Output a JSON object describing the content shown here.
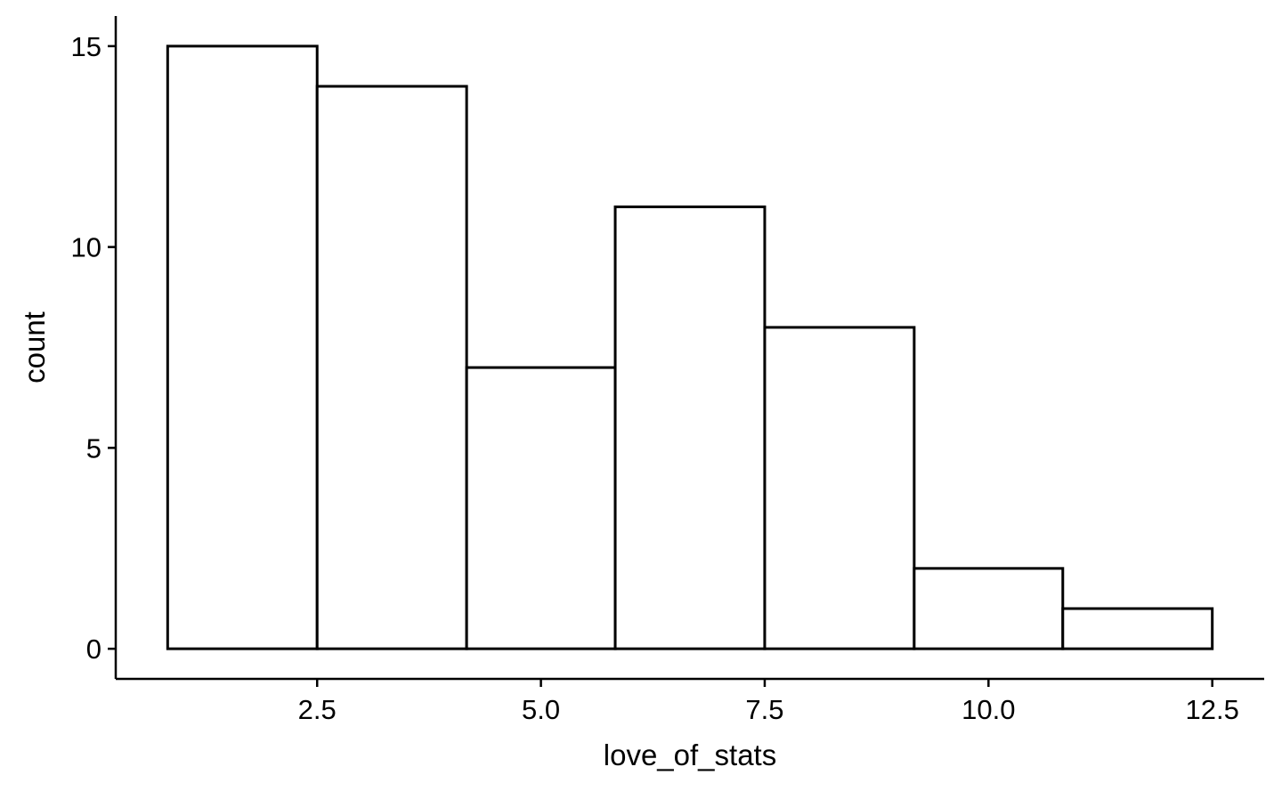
{
  "chart_data": {
    "type": "bar",
    "subtype": "histogram",
    "xlabel": "love_of_stats",
    "ylabel": "count",
    "bins": [
      {
        "x0": 0.83,
        "x1": 2.5,
        "count": 15
      },
      {
        "x0": 2.5,
        "x1": 4.17,
        "count": 14
      },
      {
        "x0": 4.17,
        "x1": 5.83,
        "count": 7
      },
      {
        "x0": 5.83,
        "x1": 7.5,
        "count": 11
      },
      {
        "x0": 7.5,
        "x1": 9.17,
        "count": 8
      },
      {
        "x0": 9.17,
        "x1": 10.83,
        "count": 2
      },
      {
        "x0": 10.83,
        "x1": 12.5,
        "count": 1
      }
    ],
    "xlim": [
      0.25,
      13.08
    ],
    "ylim": [
      -0.75,
      15.75
    ],
    "x_ticks": [
      {
        "value": 2.5,
        "label": "2.5"
      },
      {
        "value": 5.0,
        "label": "5.0"
      },
      {
        "value": 7.5,
        "label": "7.5"
      },
      {
        "value": 10.0,
        "label": "10.0"
      },
      {
        "value": 12.5,
        "label": "12.5"
      }
    ],
    "y_ticks": [
      {
        "value": 0,
        "label": "0"
      },
      {
        "value": 5,
        "label": "5"
      },
      {
        "value": 10,
        "label": "10"
      },
      {
        "value": 15,
        "label": "15"
      }
    ],
    "grid": false,
    "legend": "none",
    "bar_fill": "#ffffff",
    "bar_stroke": "#000000"
  }
}
